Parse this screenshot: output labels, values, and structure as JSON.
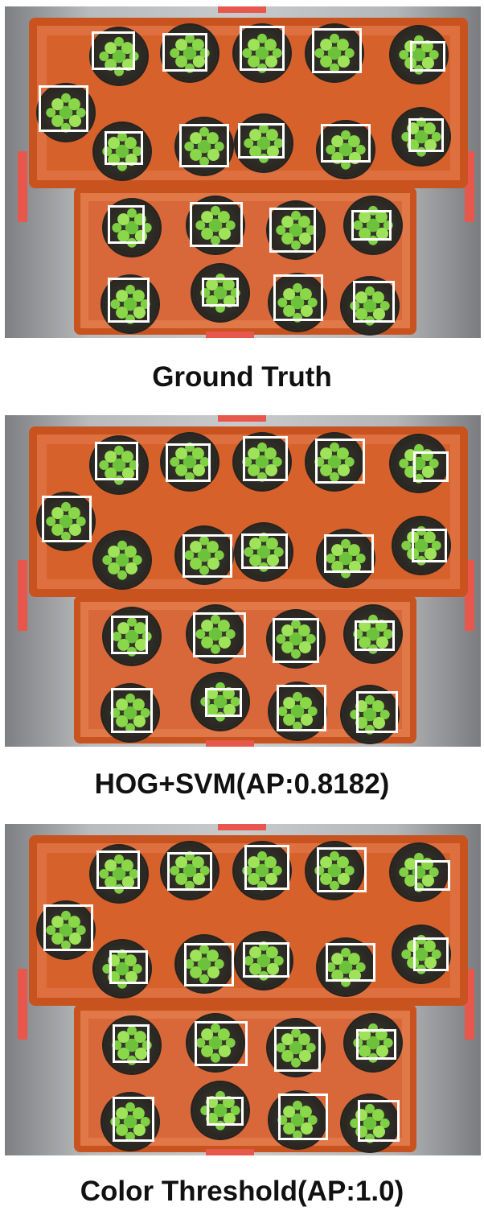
{
  "panels": [
    {
      "caption": "Ground Truth"
    },
    {
      "caption": "HOG+SVM(AP:0.8182)"
    },
    {
      "caption": "Color Threshold(AP:1.0)"
    }
  ]
}
